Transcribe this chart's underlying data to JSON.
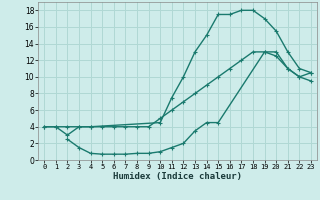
{
  "xlabel": "Humidex (Indice chaleur)",
  "bg_color": "#ceecea",
  "grid_color": "#b0d8d4",
  "line_color": "#1a7a6e",
  "xlim": [
    -0.5,
    23.5
  ],
  "ylim": [
    0,
    19
  ],
  "xticks": [
    0,
    1,
    2,
    3,
    4,
    5,
    6,
    7,
    8,
    9,
    10,
    11,
    12,
    13,
    14,
    15,
    16,
    17,
    18,
    19,
    20,
    21,
    22,
    23
  ],
  "yticks": [
    0,
    2,
    4,
    6,
    8,
    10,
    12,
    14,
    16,
    18
  ],
  "curve1_x": [
    0,
    1,
    2,
    3,
    4,
    10,
    11,
    12,
    13,
    14,
    15,
    16,
    17,
    18,
    19,
    20,
    21,
    22,
    23
  ],
  "curve1_y": [
    4,
    4,
    3,
    4,
    4,
    4.5,
    7.5,
    10,
    13,
    15,
    17.5,
    17.5,
    18,
    18,
    17,
    15.5,
    13,
    11,
    10.5
  ],
  "curve2_x": [
    0,
    1,
    2,
    3,
    4,
    5,
    6,
    7,
    8,
    9,
    10,
    11,
    12,
    13,
    14,
    15,
    16,
    17,
    18,
    19,
    20,
    21,
    22,
    23
  ],
  "curve2_y": [
    4,
    4,
    4,
    4,
    4,
    4,
    4,
    4,
    4,
    4,
    5,
    6,
    7,
    8,
    9,
    10,
    11,
    12,
    13,
    13,
    13,
    11,
    10,
    9.5
  ],
  "curve3_x": [
    2,
    3,
    4,
    5,
    6,
    7,
    8,
    9,
    10,
    11,
    12,
    13,
    14,
    15,
    19,
    20,
    21,
    22,
    23
  ],
  "curve3_y": [
    2.5,
    1.5,
    0.8,
    0.7,
    0.7,
    0.7,
    0.8,
    0.8,
    1,
    1.5,
    2,
    3.5,
    4.5,
    4.5,
    13,
    12.5,
    11,
    10,
    10.5
  ]
}
